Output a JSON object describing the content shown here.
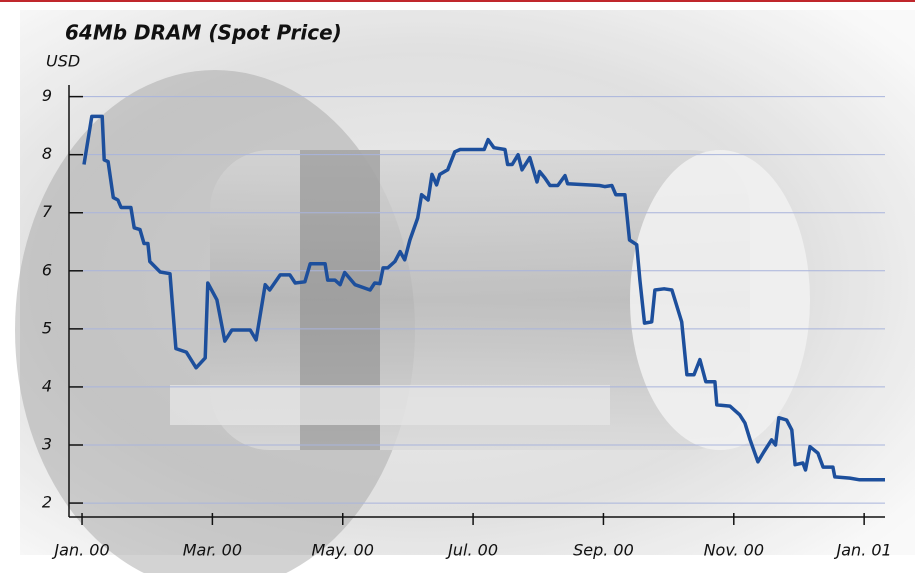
{
  "chart_data": {
    "type": "line",
    "title": "64Mb DRAM (Spot Price)",
    "y_label": "USD",
    "color": "#1d4f9c",
    "grid": true,
    "xlim": [
      -0.2,
      12.32
    ],
    "ylim": [
      1.76,
      9.2
    ],
    "xticks": [
      {
        "value": 0,
        "label": "Jan. 00"
      },
      {
        "value": 2,
        "label": "Mar. 00"
      },
      {
        "value": 4,
        "label": "May. 00"
      },
      {
        "value": 6,
        "label": "Jul. 00"
      },
      {
        "value": 8,
        "label": "Sep. 00"
      },
      {
        "value": 10,
        "label": "Nov. 00"
      },
      {
        "value": 12,
        "label": "Jan. 01"
      }
    ],
    "yticks": [
      2,
      3,
      4,
      5,
      6,
      7,
      8,
      9
    ],
    "x": [
      0.03,
      0.15,
      0.31,
      0.34,
      0.4,
      0.48,
      0.55,
      0.6,
      0.75,
      0.8,
      0.89,
      0.95,
      1.01,
      1.04,
      1.2,
      1.35,
      1.44,
      1.6,
      1.75,
      1.89,
      1.93,
      2.07,
      2.19,
      2.3,
      2.58,
      2.67,
      2.81,
      2.88,
      3.04,
      3.19,
      3.27,
      3.42,
      3.5,
      3.73,
      3.77,
      3.88,
      3.96,
      4.03,
      4.19,
      4.42,
      4.49,
      4.57,
      4.62,
      4.69,
      4.8,
      4.88,
      4.95,
      5.03,
      5.15,
      5.21,
      5.31,
      5.37,
      5.44,
      5.49,
      5.61,
      5.72,
      5.8,
      5.98,
      6.17,
      6.23,
      6.32,
      6.49,
      6.53,
      6.6,
      6.69,
      6.75,
      6.87,
      6.98,
      7.02,
      7.1,
      7.18,
      7.3,
      7.41,
      7.45,
      7.94,
      8.02,
      8.13,
      8.19,
      8.33,
      8.4,
      8.51,
      8.56,
      8.63,
      8.74,
      8.79,
      8.93,
      9.05,
      9.2,
      9.28,
      9.39,
      9.48,
      9.57,
      9.71,
      9.74,
      9.94,
      10.09,
      10.17,
      10.25,
      10.37,
      10.46,
      10.58,
      10.64,
      10.69,
      10.81,
      10.89,
      10.94,
      11.06,
      11.1,
      11.17,
      11.29,
      11.37,
      11.52,
      11.55,
      11.78,
      11.93,
      12.02,
      12.32
    ],
    "values": [
      7.83,
      8.66,
      8.66,
      7.91,
      7.88,
      7.26,
      7.22,
      7.09,
      7.09,
      6.74,
      6.71,
      6.47,
      6.47,
      6.16,
      5.98,
      5.95,
      4.66,
      4.6,
      4.33,
      4.5,
      5.79,
      5.5,
      4.79,
      4.98,
      4.98,
      4.81,
      5.76,
      5.67,
      5.93,
      5.93,
      5.79,
      5.81,
      6.12,
      6.12,
      5.84,
      5.84,
      5.76,
      5.97,
      5.76,
      5.67,
      5.79,
      5.78,
      6.05,
      6.05,
      6.16,
      6.33,
      6.19,
      6.53,
      6.91,
      7.31,
      7.22,
      7.66,
      7.48,
      7.66,
      7.74,
      8.05,
      8.09,
      8.09,
      8.09,
      8.26,
      8.12,
      8.09,
      7.83,
      7.83,
      8.0,
      7.74,
      7.95,
      7.53,
      7.71,
      7.6,
      7.47,
      7.47,
      7.64,
      7.5,
      7.47,
      7.45,
      7.47,
      7.31,
      7.31,
      6.53,
      6.45,
      5.84,
      5.1,
      5.12,
      5.67,
      5.69,
      5.67,
      5.12,
      4.21,
      4.21,
      4.47,
      4.09,
      4.09,
      3.69,
      3.67,
      3.52,
      3.38,
      3.09,
      2.71,
      2.88,
      3.09,
      3.0,
      3.47,
      3.43,
      3.26,
      2.66,
      2.69,
      2.57,
      2.97,
      2.86,
      2.62,
      2.62,
      2.45,
      2.43,
      2.4,
      2.4,
      2.4
    ]
  }
}
